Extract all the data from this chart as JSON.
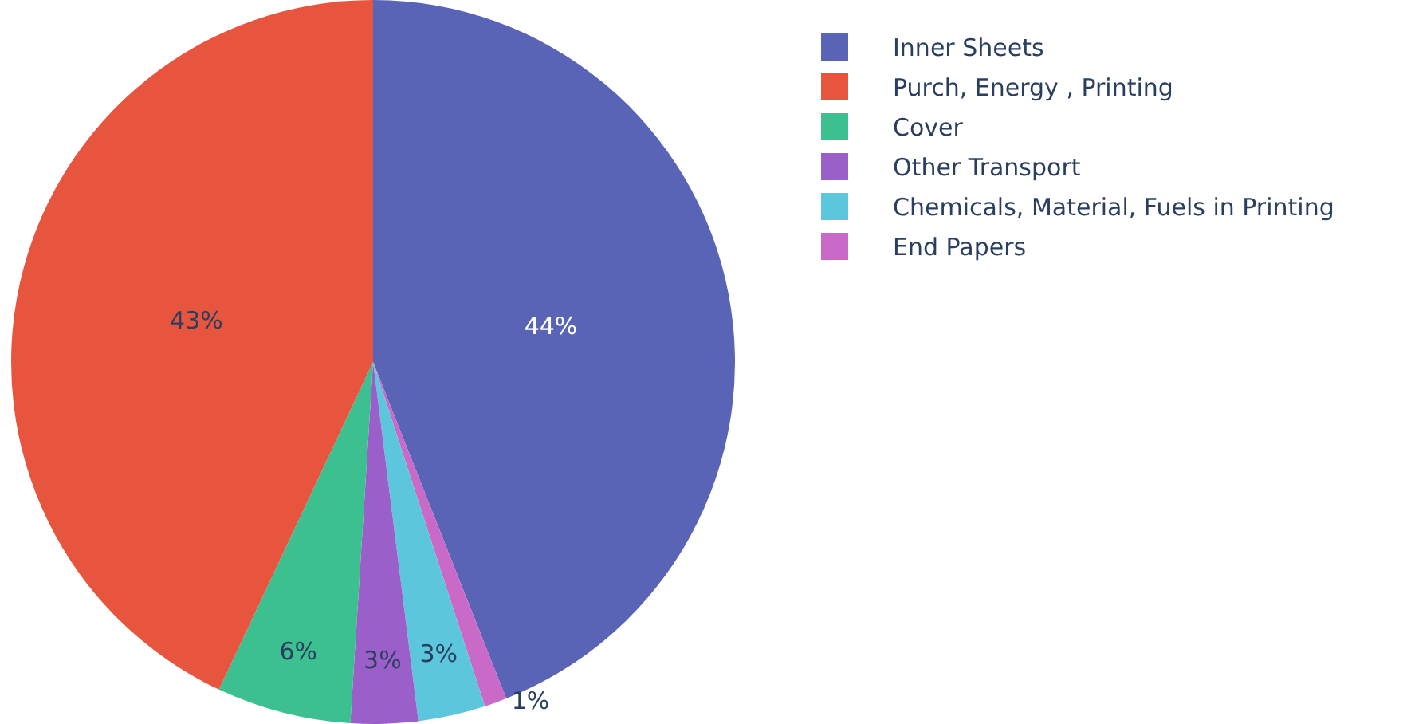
{
  "chart_data": {
    "type": "pie",
    "categories": [
      "Inner Sheets",
      "Purch, Energy , Printing",
      "Cover",
      "Other Transport",
      "Chemicals, Material, Fuels in Printing",
      "End Papers"
    ],
    "values": [
      44,
      43,
      6,
      3,
      3,
      1
    ],
    "colors": [
      "#5a64b6",
      "#e8553f",
      "#3cc08f",
      "#9a5fc9",
      "#5cc6dc",
      "#c96ac9"
    ],
    "value_labels": [
      "44%",
      "43%",
      "6%",
      "3%",
      "3%",
      "1%"
    ],
    "legend": "top right"
  }
}
